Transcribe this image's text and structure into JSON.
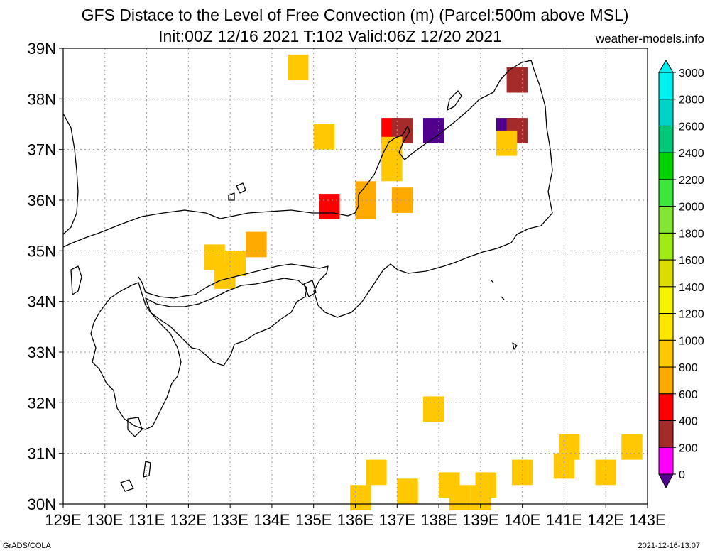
{
  "title_line1": "GFS Distace to the Level of Free Convection (m) (Parcel:500m above MSL)",
  "title_line2": "Init:00Z 12/16 2021 T:102 Valid:06Z 12/20 2021",
  "site": "weather-models.info",
  "footer_left": "GrADS/COLA",
  "footer_right": "2021-12-16-13:07",
  "map": {
    "lon_labels": [
      "129E",
      "130E",
      "131E",
      "132E",
      "133E",
      "134E",
      "135E",
      "136E",
      "137E",
      "138E",
      "139E",
      "140E",
      "141E",
      "142E",
      "143E"
    ],
    "lat_labels": [
      "39N",
      "38N",
      "37N",
      "36N",
      "35N",
      "34N",
      "33N",
      "32N",
      "31N",
      "30N"
    ],
    "lon_range": [
      129,
      143
    ],
    "lat_range": [
      30,
      39
    ],
    "grid": true,
    "grid_lon_step": 0.5,
    "grid_lat_step": 0.5
  },
  "colorbar": {
    "levels": [
      "3000",
      "2800",
      "2600",
      "2400",
      "2200",
      "2000",
      "1800",
      "1600",
      "1400",
      "1200",
      "1000",
      "800",
      "600",
      "400",
      "200",
      "0"
    ],
    "colors": [
      "#00f0f0",
      "#00d2c8",
      "#00c878",
      "#00d200",
      "#3ce63c",
      "#82e632",
      "#a0eb14",
      "#dcdc00",
      "#f5f500",
      "#ffe600",
      "#ffc800",
      "#ffaa00",
      "#ff0000",
      "#a52a2a",
      "#ff00ff",
      "#50008c"
    ]
  },
  "field": [
    {
      "lon": 134.625,
      "lat": 38.625,
      "v": 1100
    },
    {
      "lon": 139.875,
      "lat": 38.375,
      "v": 500
    },
    {
      "lon": 135.25,
      "lat": 37.25,
      "v": 1050
    },
    {
      "lon": 136.875,
      "lat": 37.375,
      "v": 700
    },
    {
      "lon": 137.125,
      "lat": 37.375,
      "v": 500
    },
    {
      "lon": 136.875,
      "lat": 37.0,
      "v": 1000
    },
    {
      "lon": 136.875,
      "lat": 36.625,
      "v": 1050
    },
    {
      "lon": 137.875,
      "lat": 37.375,
      "v": 150
    },
    {
      "lon": 139.625,
      "lat": 37.375,
      "v": 150
    },
    {
      "lon": 139.875,
      "lat": 37.375,
      "v": 400
    },
    {
      "lon": 139.625,
      "lat": 37.125,
      "v": 1100
    },
    {
      "lon": 136.25,
      "lat": 36.125,
      "v": 800
    },
    {
      "lon": 135.375,
      "lat": 35.875,
      "v": 600
    },
    {
      "lon": 136.25,
      "lat": 35.875,
      "v": 900
    },
    {
      "lon": 137.125,
      "lat": 36.0,
      "v": 850
    },
    {
      "lon": 133.625,
      "lat": 35.125,
      "v": 950
    },
    {
      "lon": 132.625,
      "lat": 34.875,
      "v": 1000
    },
    {
      "lon": 133.125,
      "lat": 34.75,
      "v": 1050
    },
    {
      "lon": 132.875,
      "lat": 34.5,
      "v": 1050
    },
    {
      "lon": 137.875,
      "lat": 31.875,
      "v": 1050
    },
    {
      "lon": 136.125,
      "lat": 30.125,
      "v": 1050
    },
    {
      "lon": 136.5,
      "lat": 30.625,
      "v": 1050
    },
    {
      "lon": 137.25,
      "lat": 30.25,
      "v": 1050
    },
    {
      "lon": 138.25,
      "lat": 30.375,
      "v": 1050
    },
    {
      "lon": 138.5,
      "lat": 30.125,
      "v": 1050
    },
    {
      "lon": 139.0,
      "lat": 30.125,
      "v": 1050
    },
    {
      "lon": 139.125,
      "lat": 30.375,
      "v": 1050
    },
    {
      "lon": 140.0,
      "lat": 30.625,
      "v": 1050
    },
    {
      "lon": 141.0,
      "lat": 30.75,
      "v": 1000
    },
    {
      "lon": 141.125,
      "lat": 31.125,
      "v": 1050
    },
    {
      "lon": 142.0,
      "lat": 30.625,
      "v": 1000
    },
    {
      "lon": 142.625,
      "lat": 31.125,
      "v": 1050
    }
  ]
}
